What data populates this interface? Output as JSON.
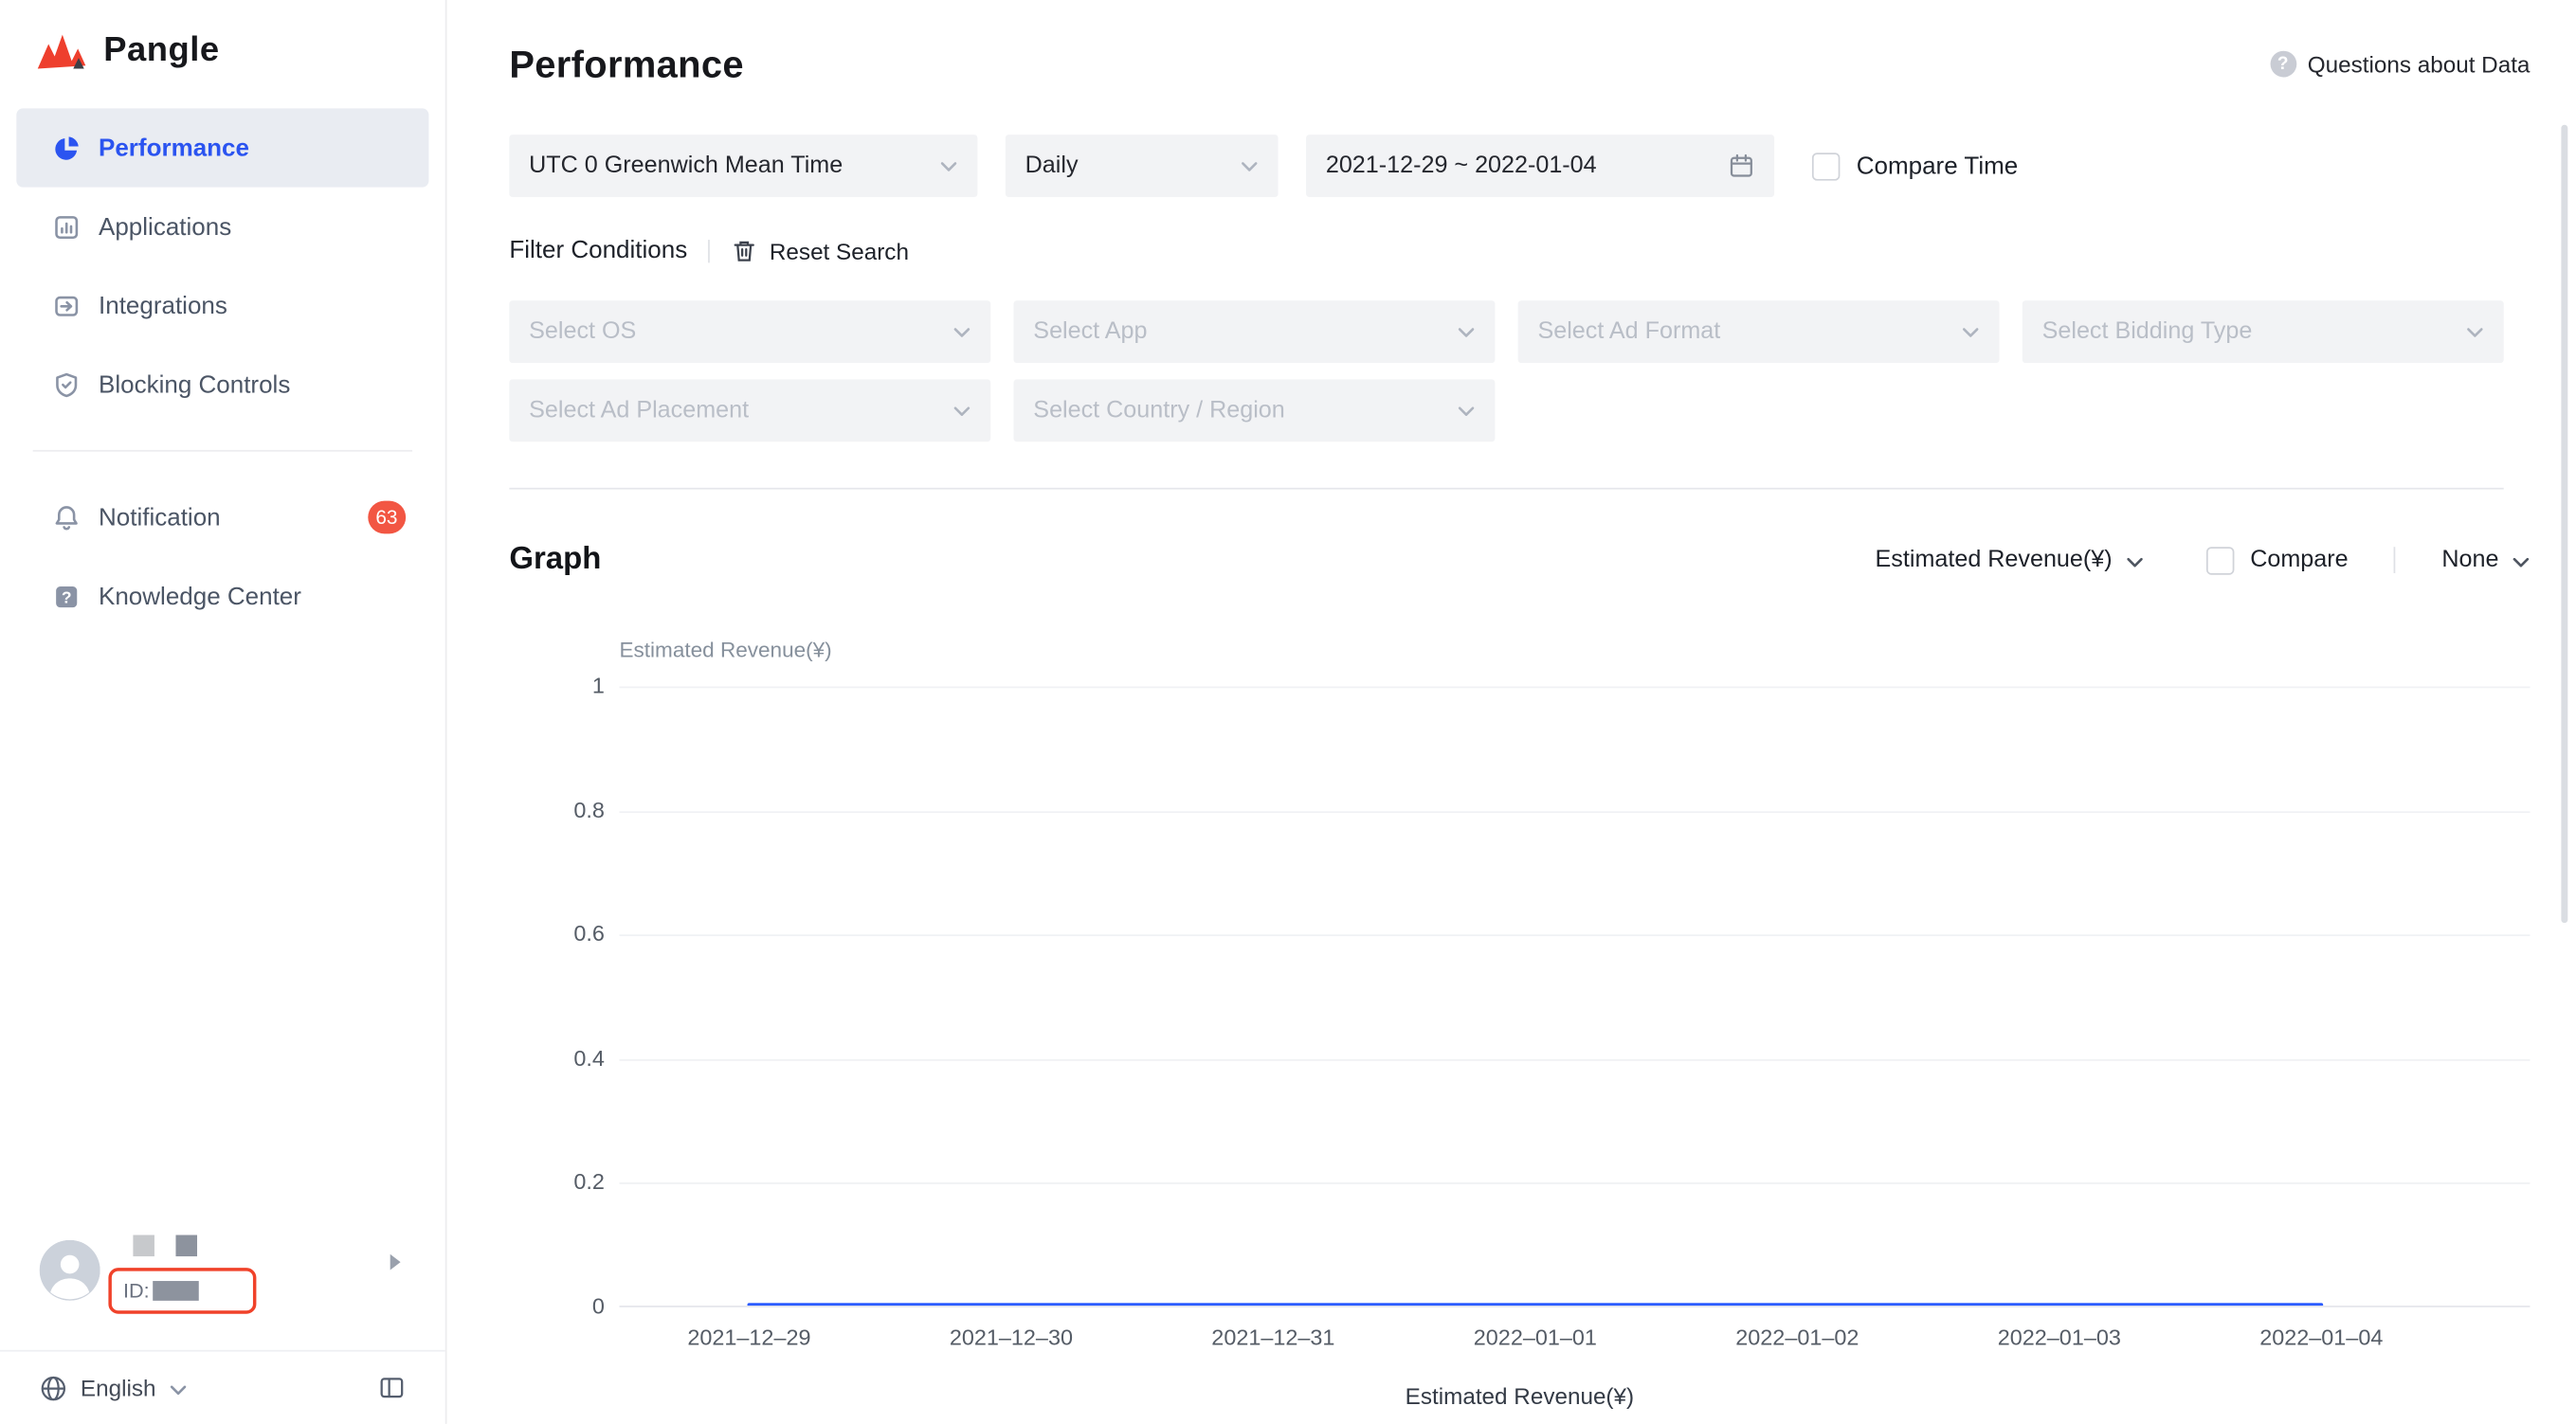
{
  "brand": {
    "name": "Pangle"
  },
  "sidebar": {
    "items": [
      {
        "label": "Performance",
        "icon": "pie-chart",
        "active": true
      },
      {
        "label": "Applications",
        "icon": "applications"
      },
      {
        "label": "Integrations",
        "icon": "integrations"
      },
      {
        "label": "Blocking Controls",
        "icon": "shield"
      },
      {
        "label": "Notification",
        "icon": "bell",
        "badge": "63",
        "divider_before": true
      },
      {
        "label": "Knowledge Center",
        "icon": "question"
      }
    ],
    "user": {
      "id_label": "ID:"
    },
    "language": "English"
  },
  "header": {
    "title": "Performance",
    "help_link": "Questions about Data"
  },
  "filters": {
    "timezone": "UTC 0 Greenwich Mean Time",
    "granularity": "Daily",
    "date_range": "2021-12-29 ~ 2022-01-04",
    "compare_time_label": "Compare Time",
    "conditions_label": "Filter Conditions",
    "reset_label": "Reset Search",
    "selects_row1": [
      "Select OS",
      "Select App",
      "Select Ad Format",
      "Select Bidding Type"
    ],
    "selects_row2": [
      "Select Ad Placement",
      "Select Country / Region"
    ]
  },
  "graph": {
    "title": "Graph",
    "metric_label": "Estimated Revenue(¥)",
    "compare_label": "Compare",
    "secondary_metric": "None",
    "legend": "Estimated Revenue(¥)"
  },
  "chart_data": {
    "type": "line",
    "title": "",
    "xlabel": "",
    "ylabel": "Estimated Revenue(¥)",
    "x": [
      "2021–12–29",
      "2021–12–30",
      "2021–12–31",
      "2022–01–01",
      "2022–01–02",
      "2022–01–03",
      "2022–01–04"
    ],
    "series": [
      {
        "name": "Estimated Revenue(¥)",
        "values": [
          0,
          0,
          0,
          0,
          0,
          0,
          0
        ]
      }
    ],
    "ylim": [
      0,
      1
    ],
    "yticks": [
      1,
      0.8,
      0.6,
      0.4,
      0.2,
      0
    ],
    "grid": true,
    "legend_position": "bottom",
    "line_color": "#2b5cff"
  },
  "colors": {
    "accent_blue": "#2b54f0",
    "badge_red": "#f25643",
    "line_blue": "#2b5cff",
    "highlight_box_red": "#f0422a",
    "control_bg": "#f2f3f5",
    "placeholder_gray": "#b9bec7"
  }
}
